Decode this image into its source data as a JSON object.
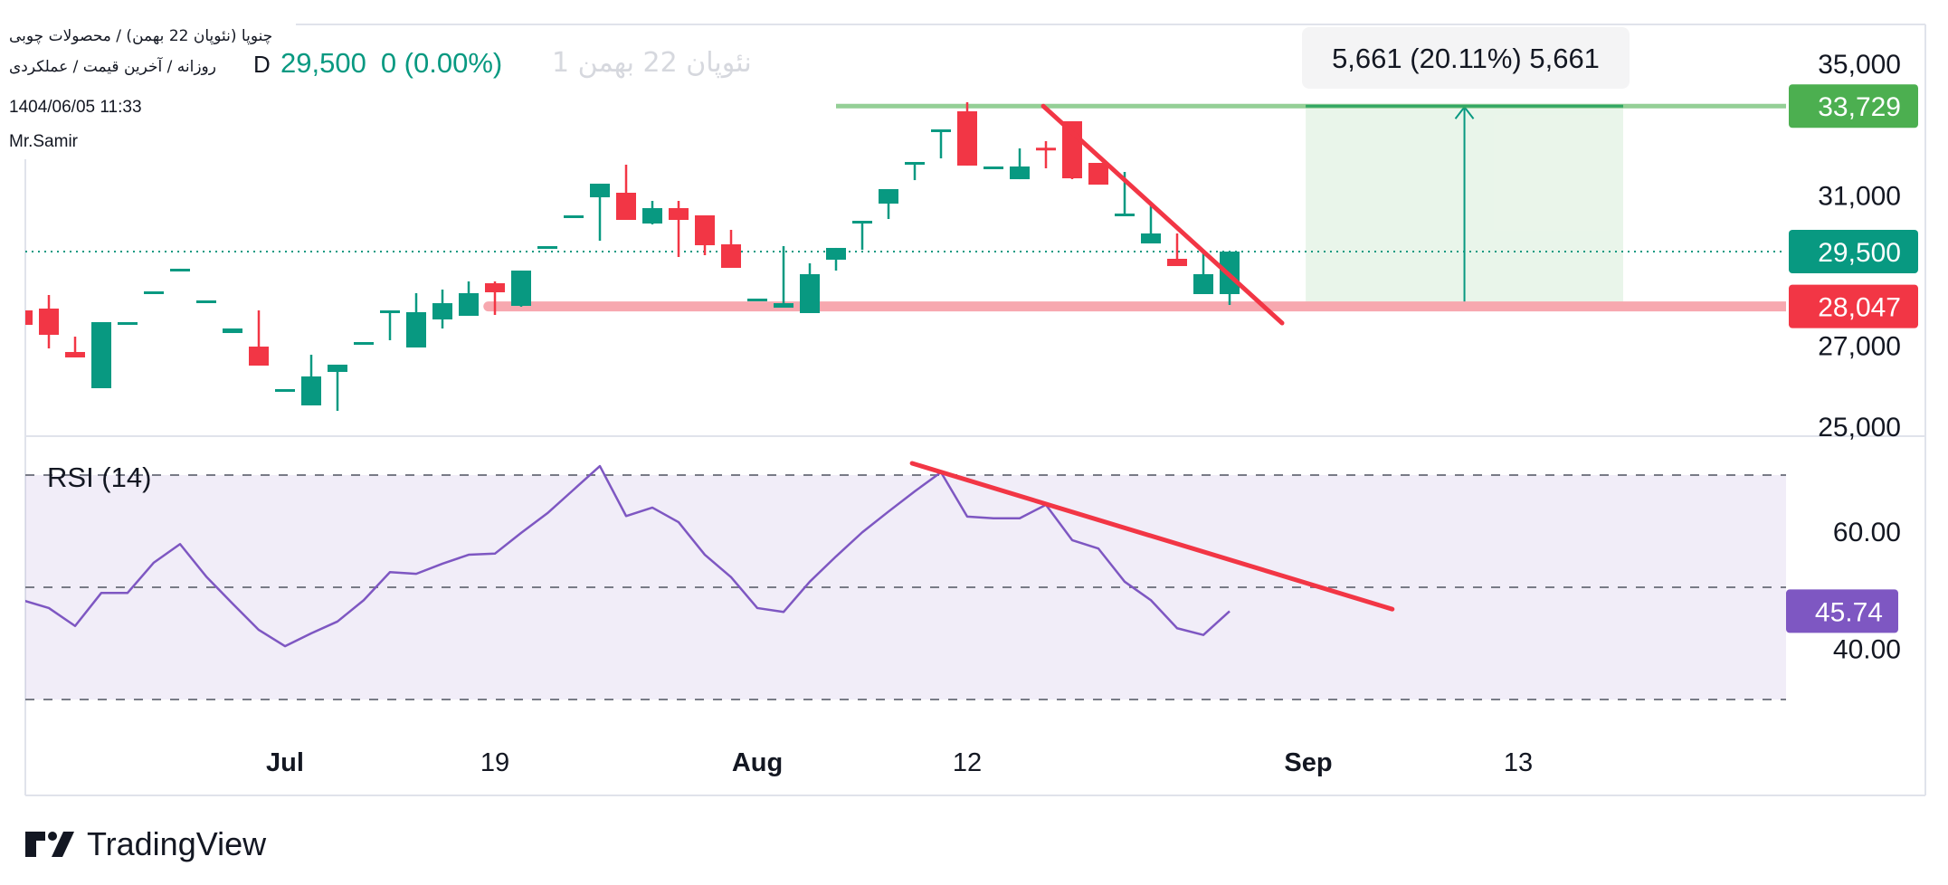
{
  "header": {
    "title": "چنوپا (نئوپان 22 بهمن) / محصولات چوبی",
    "subtitle": "روزانه / آخرین قیمت / عملکردی",
    "ghost_symbol": "نئوپان 22 بهمن 1",
    "interval": "D",
    "last_price": "29,500",
    "change": "0 (0.00%)",
    "datetime": "1404/06/05 11:33",
    "author": "Mr.Samir"
  },
  "colors": {
    "up": "#089981",
    "down": "#f23645",
    "rsi": "#7e57c2",
    "target": "#4caf50",
    "support": "#f7a8af",
    "trend": "#f23645"
  },
  "chart_data": {
    "type": "candlestick",
    "scale": "log",
    "price_axis_ticks": [
      {
        "value": 35000,
        "label": "35,000"
      },
      {
        "value": 31000,
        "label": "31,000"
      },
      {
        "value": 27000,
        "label": "27,000"
      },
      {
        "value": 25000,
        "label": "25,000"
      }
    ],
    "time_axis_ticks": [
      {
        "bar": 10,
        "label": "Jul",
        "bold": true
      },
      {
        "bar": 18,
        "label": "19",
        "bold": false
      },
      {
        "bar": 28,
        "label": "Aug",
        "bold": true
      },
      {
        "bar": 36,
        "label": "12",
        "bold": false
      },
      {
        "bar": 49,
        "label": "Sep",
        "bold": true
      },
      {
        "bar": 57,
        "label": "13",
        "bold": false
      }
    ],
    "candles_ohlc": [
      [
        27944,
        27944,
        27575,
        27575
      ],
      [
        27991,
        28343,
        26983,
        27323
      ],
      [
        26894,
        27277,
        26760,
        26760
      ],
      [
        26012,
        27644,
        26012,
        27644
      ],
      [
        27644,
        27644,
        27644,
        27644
      ],
      [
        28438,
        28438,
        28438,
        28438
      ],
      [
        29037,
        29037,
        28988,
        29037
      ],
      [
        28202,
        28202,
        28202,
        28202
      ],
      [
        27368,
        27483,
        27368,
        27483
      ],
      [
        27028,
        27944,
        26559,
        26559
      ],
      [
        25990,
        25990,
        25990,
        25990
      ],
      [
        25603,
        26826,
        25603,
        26295
      ],
      [
        26405,
        26582,
        25476,
        26582
      ],
      [
        27141,
        27141,
        27141,
        27141
      ],
      [
        27900,
        27944,
        27187,
        27944
      ],
      [
        27006,
        28391,
        27006,
        27898
      ],
      [
        27713,
        28485,
        27483,
        28131
      ],
      [
        27805,
        28700,
        27805,
        28391
      ],
      [
        28652,
        28700,
        27828,
        28414
      ],
      [
        28061,
        28988,
        28038,
        28988
      ],
      [
        29648,
        29648,
        29599,
        29648
      ],
      [
        30500,
        30500,
        30500,
        30500
      ],
      [
        31012,
        31403,
        29796,
        31403
      ],
      [
        31142,
        31957,
        30373,
        30373
      ],
      [
        30272,
        30909,
        30247,
        30704
      ],
      [
        30704,
        30909,
        29353,
        30373
      ],
      [
        30500,
        30500,
        29402,
        29673
      ],
      [
        29697,
        30096,
        29061,
        29061
      ],
      [
        28249,
        28249,
        28249,
        28249
      ],
      [
        28014,
        29648,
        28014,
        28131
      ],
      [
        27875,
        29182,
        27875,
        28892
      ],
      [
        29280,
        29599,
        28988,
        29599
      ],
      [
        30300,
        30348,
        29549,
        30348
      ],
      [
        30832,
        31246,
        30398,
        31246
      ],
      [
        32000,
        32037,
        31506,
        32037
      ],
      [
        32980,
        33013,
        32144,
        33013
      ],
      [
        33567,
        33848,
        31931,
        31931
      ],
      [
        31904,
        31904,
        31904,
        31904
      ],
      [
        31533,
        32440,
        31533,
        31904
      ],
      [
        32460,
        32657,
        31851,
        32420
      ],
      [
        33261,
        33261,
        31533,
        31559
      ],
      [
        32010,
        32010,
        31376,
        31376
      ],
      [
        30520,
        31745,
        30520,
        30551
      ],
      [
        29722,
        30832,
        29722,
        29996
      ],
      [
        29304,
        29996,
        29109,
        29109
      ],
      [
        28367,
        29525,
        28367,
        28892
      ],
      [
        28367,
        29500,
        28085,
        29500
      ]
    ],
    "last_price": {
      "value": 29500,
      "label": "29,500"
    },
    "target_line": {
      "value": 33729,
      "label": "33,729",
      "from_bar": 31
    },
    "support_line": {
      "value": 28047,
      "label": "28,047",
      "from_bar": 17.75
    },
    "trendline": {
      "from": {
        "bar": 38.9,
        "price": 33729
      },
      "to": {
        "bar": 48.0,
        "price": 27620
      }
    },
    "measure": {
      "from_bar": 48.9,
      "to_bar": 61.0,
      "low": 28068,
      "high": 33729,
      "label": "5,661 (20.11%) 5,661"
    },
    "rsi": {
      "title": "RSI (14)",
      "period": 14,
      "upper": 70,
      "middle": 50,
      "lower": 30,
      "ticks": [
        {
          "value": 60,
          "label": "60.00"
        },
        {
          "value": 40,
          "label": "40.00"
        }
      ],
      "current": {
        "value": 45.74,
        "label": "45.74"
      },
      "values": [
        47.7,
        46.3,
        43.1,
        49.0,
        49.0,
        54.4,
        57.7,
        51.9,
        47.1,
        42.4,
        39.5,
        41.8,
        43.9,
        47.7,
        52.7,
        52.4,
        54.2,
        55.8,
        56.0,
        59.7,
        63.2,
        67.4,
        71.6,
        62.7,
        64.2,
        61.6,
        55.8,
        51.8,
        46.3,
        45.6,
        51.0,
        55.5,
        59.8,
        63.5,
        67.1,
        70.5,
        62.6,
        62.3,
        62.3,
        64.7,
        58.4,
        56.9,
        51.0,
        47.7,
        42.7,
        41.5,
        45.74
      ],
      "trendline": {
        "from": {
          "bar": 33.9,
          "value": 72.1
        },
        "to": {
          "bar": 52.2,
          "value": 46.1
        }
      }
    }
  },
  "branding": {
    "logo_text": "TradingView"
  }
}
